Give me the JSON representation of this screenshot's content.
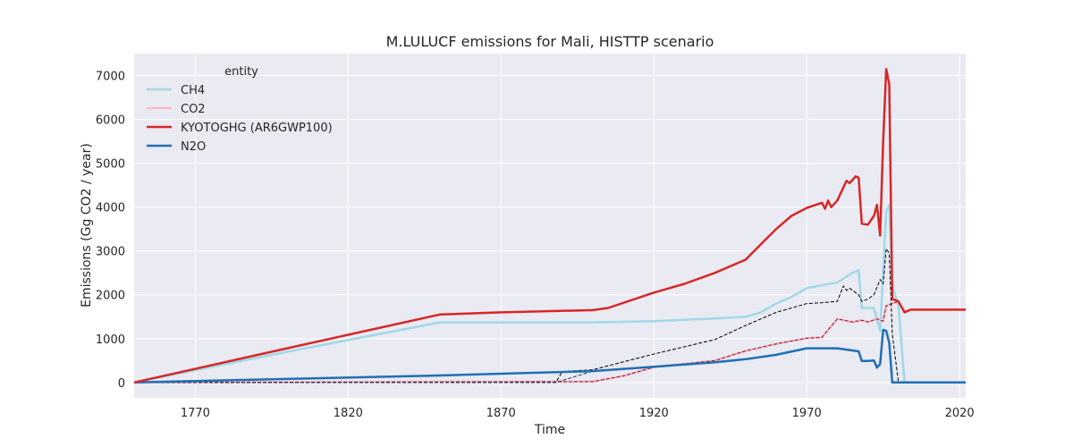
{
  "chart_data": {
    "type": "line",
    "title": "M.LULUCF emissions for Mali, HISTTP scenario",
    "xlabel": "Time",
    "ylabel": "Emissions (Gg CO2 / year)",
    "xlim": [
      1750,
      2022
    ],
    "ylim": [
      -350,
      7500
    ],
    "xticks": [
      1770,
      1820,
      1870,
      1920,
      1970,
      2020
    ],
    "yticks": [
      0,
      1000,
      2000,
      3000,
      4000,
      5000,
      6000,
      7000
    ],
    "grid": true,
    "legend": {
      "title": "entity",
      "position": "top-left"
    },
    "colors": {
      "background": "#eaeaf2",
      "grid": "#ffffff"
    },
    "series": [
      {
        "name": "CH4",
        "color": "#9fd9e6",
        "width": 2.5,
        "dash": false,
        "x": [
          1750,
          1800,
          1850,
          1900,
          1920,
          1940,
          1950,
          1955,
          1960,
          1965,
          1970,
          1975,
          1980,
          1985,
          1987,
          1988,
          1990,
          1992,
          1994,
          1996,
          1997,
          1998,
          2000,
          2002,
          2005,
          2022
        ],
        "y": [
          0,
          700,
          1370,
          1370,
          1400,
          1460,
          1500,
          1600,
          1800,
          1950,
          2150,
          2220,
          2280,
          2500,
          2560,
          1700,
          1700,
          1700,
          1180,
          3900,
          4050,
          2200,
          1750,
          0,
          0,
          0
        ]
      },
      {
        "name": "CO2",
        "color": "#f7bccb",
        "width": 2.5,
        "dash": false,
        "x": [
          1750,
          1800,
          1850,
          1900,
          1910,
          1920,
          1940,
          1950,
          1960,
          1970,
          1975,
          1980,
          1985,
          1988,
          1990,
          1993,
          1995,
          1996,
          1998,
          2000,
          2002,
          2004,
          2022
        ],
        "y": [
          0,
          10,
          20,
          20,
          150,
          350,
          500,
          720,
          880,
          1010,
          1030,
          1450,
          1380,
          1420,
          1380,
          1450,
          1400,
          1750,
          1800,
          1850,
          1620,
          1660,
          1660
        ]
      },
      {
        "name": "KYOTOGHG (AR6GWP100)",
        "color": "#d62728",
        "width": 2.5,
        "dash": false,
        "x": [
          1750,
          1800,
          1850,
          1870,
          1900,
          1905,
          1920,
          1930,
          1940,
          1950,
          1955,
          1960,
          1965,
          1970,
          1975,
          1976,
          1977,
          1978,
          1980,
          1983,
          1984,
          1985,
          1986,
          1987,
          1988,
          1990,
          1992,
          1993,
          1994,
          1995,
          1996,
          1997,
          1998,
          2000,
          2002,
          2004,
          2022
        ],
        "y": [
          0,
          780,
          1550,
          1600,
          1650,
          1700,
          2050,
          2250,
          2500,
          2800,
          3150,
          3500,
          3800,
          3980,
          4100,
          3960,
          4150,
          4000,
          4150,
          4600,
          4550,
          4620,
          4700,
          4670,
          3620,
          3600,
          3800,
          4050,
          3350,
          5500,
          7150,
          6800,
          1900,
          1850,
          1600,
          1660,
          1660
        ]
      },
      {
        "name": "N2O",
        "color": "#1f6fb4",
        "width": 2.5,
        "dash": false,
        "x": [
          1750,
          1800,
          1850,
          1900,
          1920,
          1940,
          1950,
          1960,
          1970,
          1980,
          1987,
          1988,
          1990,
          1992,
          1993,
          1994,
          1995,
          1996,
          1997,
          1998,
          2000,
          2002,
          2022
        ],
        "y": [
          0,
          80,
          160,
          260,
          360,
          460,
          530,
          630,
          780,
          780,
          710,
          490,
          490,
          500,
          340,
          420,
          1200,
          1180,
          900,
          0,
          0,
          0,
          0
        ]
      },
      {
        "name": "",
        "color": "#000000",
        "width": 1,
        "dash": true,
        "x": [
          1750,
          1888,
          1890,
          1900,
          1920,
          1940,
          1950,
          1960,
          1970,
          1975,
          1980,
          1982,
          1983,
          1984,
          1985,
          1986,
          1987,
          1988,
          1990,
          1992,
          1994,
          1995,
          1996,
          1997,
          1998,
          2000,
          2002,
          2022
        ],
        "y": [
          0,
          0,
          250,
          290,
          650,
          980,
          1300,
          1600,
          1800,
          1820,
          1850,
          2200,
          2100,
          2150,
          2100,
          2050,
          2000,
          1850,
          1900,
          2000,
          2350,
          2250,
          3050,
          2950,
          1100,
          0,
          0,
          0
        ]
      },
      {
        "name": "",
        "color": "#8b1a2c",
        "width": 1,
        "dash": true,
        "x": [
          1750,
          1900,
          1910,
          1920,
          1940,
          1950,
          1960,
          1970,
          1975,
          1980,
          1985,
          1988,
          1990,
          1993,
          1995,
          1996,
          1998,
          2000,
          2002,
          2004,
          2022
        ],
        "y": [
          0,
          20,
          150,
          350,
          500,
          720,
          880,
          1010,
          1030,
          1450,
          1380,
          1420,
          1380,
          1450,
          1400,
          1750,
          1800,
          1850,
          1620,
          1660,
          1660
        ]
      },
      {
        "name": "",
        "color": "#1a3a5c",
        "width": 1,
        "dash": true,
        "x": [
          1750,
          1888,
          1900,
          1920,
          1940,
          1950,
          1960,
          1970,
          1980,
          1987,
          1988,
          1990,
          1992,
          1993,
          1994,
          1995,
          1996,
          1997,
          1998,
          2000,
          2022
        ],
        "y": [
          0,
          0,
          260,
          360,
          460,
          530,
          630,
          780,
          780,
          710,
          490,
          490,
          500,
          340,
          420,
          1200,
          1180,
          900,
          0,
          0,
          0
        ]
      }
    ]
  }
}
